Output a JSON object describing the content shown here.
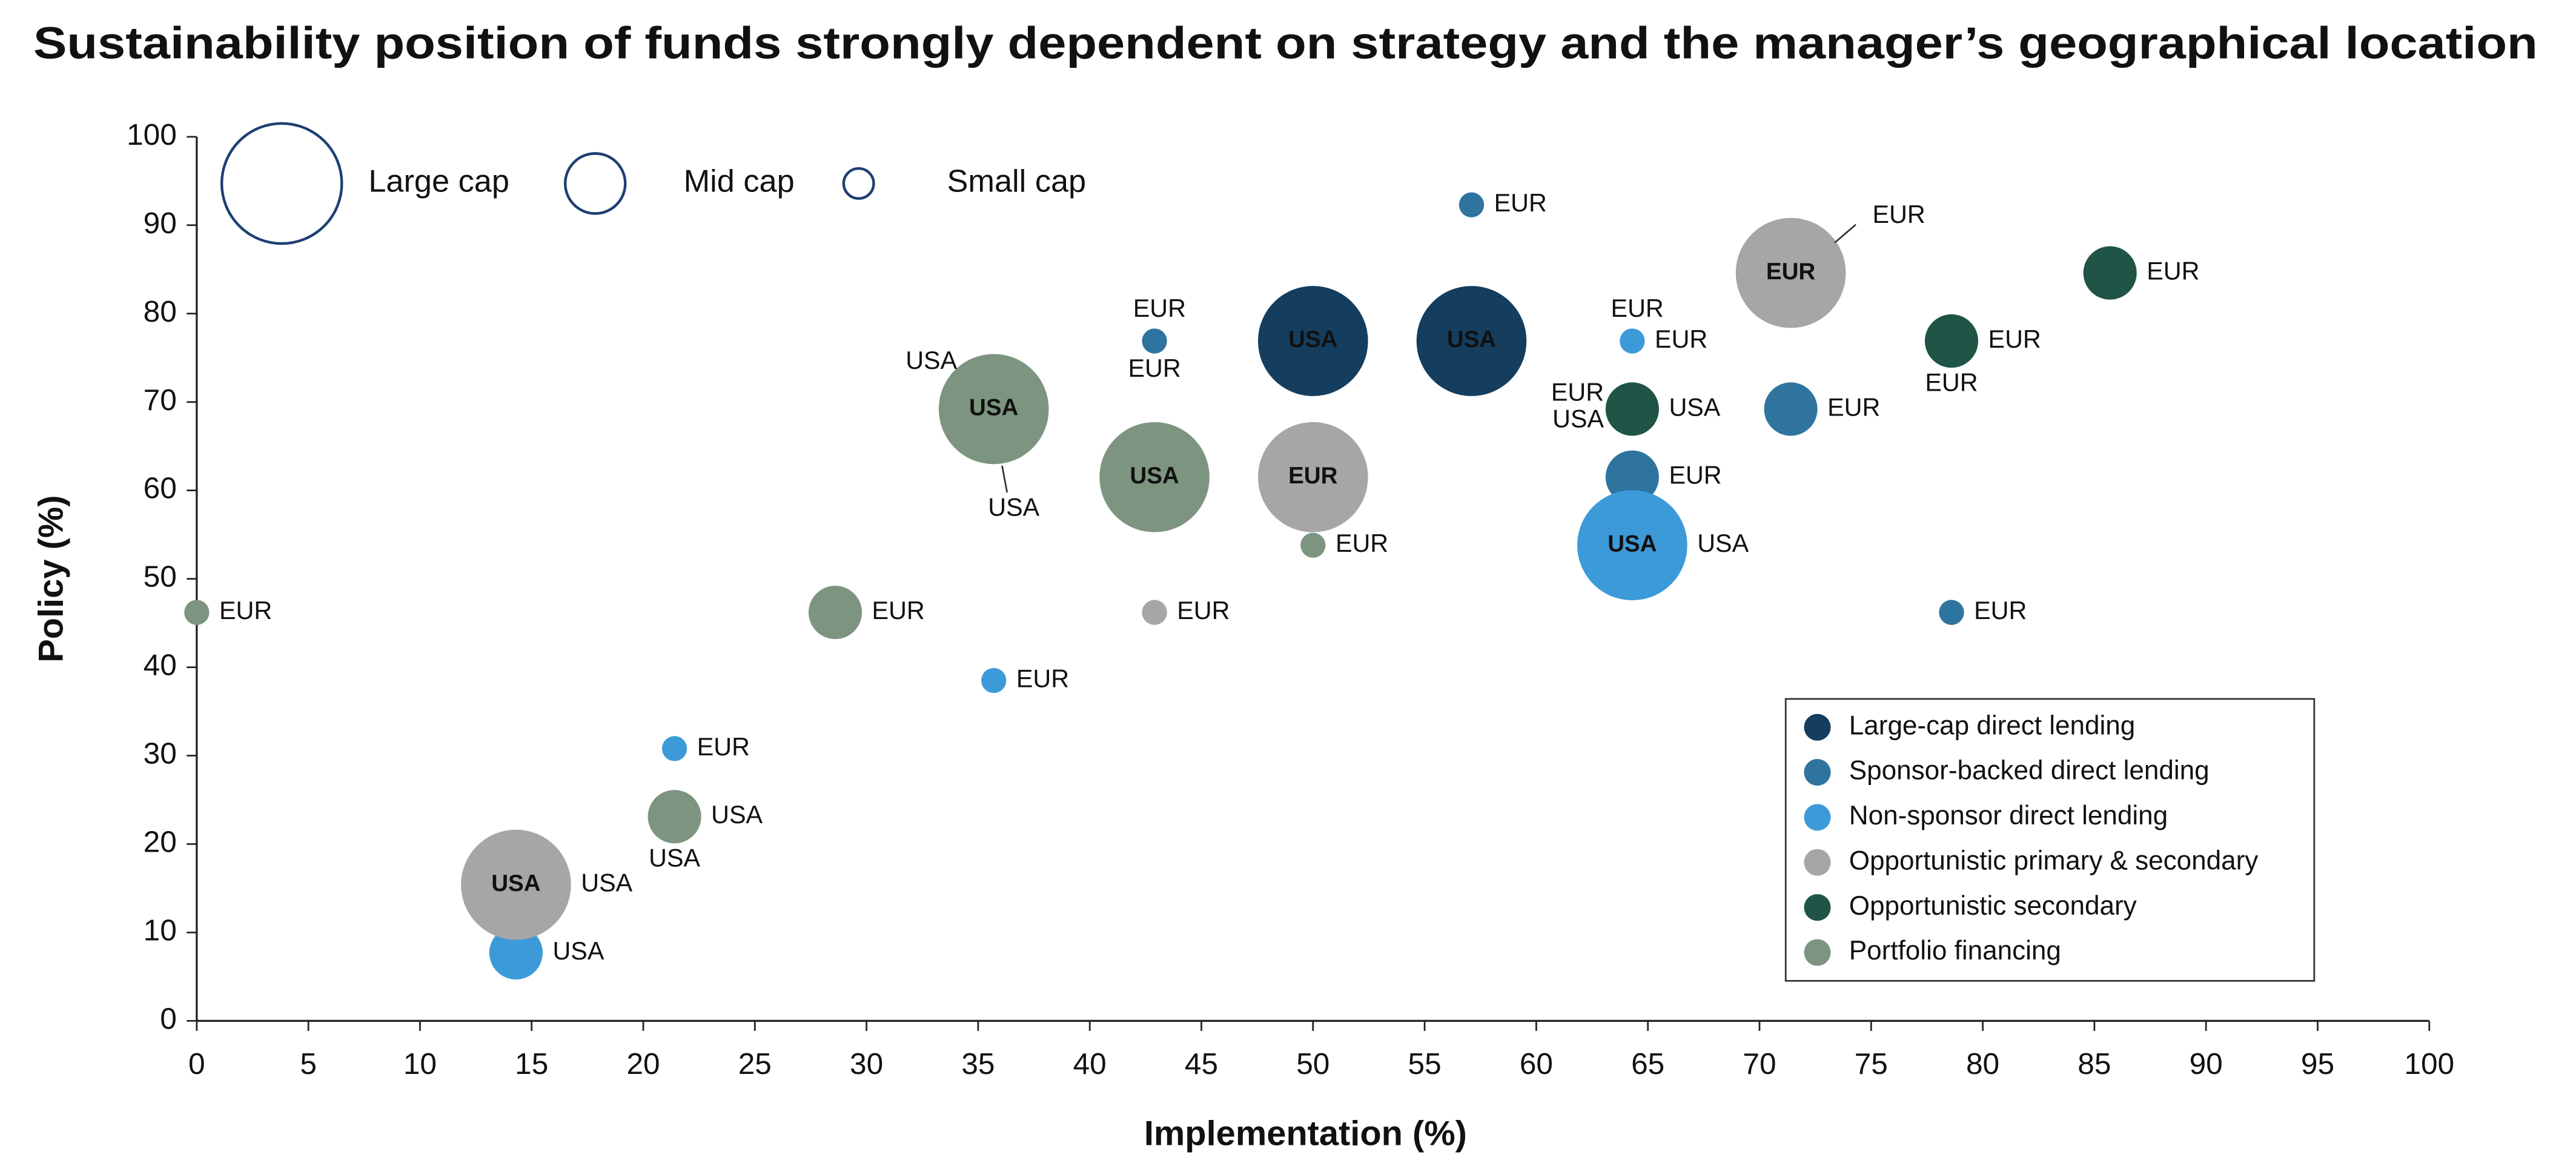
{
  "chart_data": {
    "type": "bubble",
    "title": "Sustainability position of funds strongly dependent on strategy and the manager’s geographical location",
    "x_label": "Implementation (%)",
    "y_label": "Policy (%)",
    "xlim": [
      0,
      100
    ],
    "ylim": [
      0,
      100
    ],
    "xticks": [
      0,
      5,
      10,
      15,
      20,
      25,
      30,
      35,
      40,
      45,
      50,
      55,
      60,
      65,
      70,
      75,
      80,
      85,
      90,
      95,
      100
    ],
    "yticks": [
      0,
      10,
      20,
      30,
      40,
      50,
      60,
      70,
      80,
      90,
      100
    ],
    "grid": false,
    "legend": "lower right",
    "size_legend": [
      "Large cap",
      "Mid cap",
      "Small cap"
    ],
    "series": [
      {
        "name": "Large-cap direct lending",
        "color": "#143d5e",
        "inside_text_color": "#ffffff",
        "points": [
          {
            "x": 50,
            "y": 76.9,
            "size": "Large cap",
            "labels": [
              {
                "text": "USA",
                "pos": "inside"
              }
            ]
          },
          {
            "x": 57.1,
            "y": 76.9,
            "size": "Large cap",
            "labels": [
              {
                "text": "USA",
                "pos": "inside"
              }
            ]
          }
        ]
      },
      {
        "name": "Sponsor-backed direct lending",
        "color": "#2f749e",
        "inside_text_color": "#ffffff",
        "points": [
          {
            "x": 57.1,
            "y": 92.3,
            "size": "Small cap",
            "labels": [
              {
                "text": "EUR",
                "pos": "right"
              }
            ]
          },
          {
            "x": 42.9,
            "y": 76.9,
            "size": "Small cap",
            "labels": [
              {
                "text": "EUR",
                "pos": "above"
              },
              {
                "text": "EUR",
                "pos": "below"
              }
            ]
          },
          {
            "x": 71.4,
            "y": 69.2,
            "size": "Mid cap",
            "labels": [
              {
                "text": "EUR",
                "pos": "right"
              }
            ]
          },
          {
            "x": 64.3,
            "y": 61.5,
            "size": "Mid cap",
            "labels": [
              {
                "text": "EUR",
                "pos": "right"
              }
            ]
          },
          {
            "x": 78.6,
            "y": 46.2,
            "size": "Small cap",
            "labels": [
              {
                "text": "EUR",
                "pos": "right"
              }
            ]
          }
        ]
      },
      {
        "name": "Non-sponsor direct lending",
        "color": "#3d9ad9",
        "inside_text_color": "#0b1f30",
        "points": [
          {
            "x": 64.3,
            "y": 76.9,
            "size": "Small cap",
            "labels": [
              {
                "text": "EUR",
                "pos": "above"
              },
              {
                "text": "EUR",
                "pos": "right"
              }
            ]
          },
          {
            "x": 64.3,
            "y": 53.8,
            "size": "Large cap",
            "labels": [
              {
                "text": "USA",
                "pos": "inside"
              },
              {
                "text": "USA",
                "pos": "right"
              }
            ]
          },
          {
            "x": 35.7,
            "y": 38.5,
            "size": "Small cap",
            "labels": [
              {
                "text": "EUR",
                "pos": "right"
              }
            ]
          },
          {
            "x": 21.4,
            "y": 30.8,
            "size": "Small cap",
            "labels": [
              {
                "text": "EUR",
                "pos": "right"
              }
            ]
          },
          {
            "x": 14.3,
            "y": 7.7,
            "size": "Mid cap",
            "labels": [
              {
                "text": "USA",
                "pos": "right"
              }
            ]
          }
        ]
      },
      {
        "name": "Opportunistic primary & secondary",
        "color": "#a6a6a6",
        "inside_text_color": "#ffffff",
        "points": [
          {
            "x": 71.4,
            "y": 84.6,
            "size": "Large cap",
            "labels": [
              {
                "text": "EUR",
                "pos": "inside"
              },
              {
                "text": "EUR",
                "pos": "upper-right"
              }
            ]
          },
          {
            "x": 50,
            "y": 61.5,
            "size": "Large cap",
            "labels": [
              {
                "text": "EUR",
                "pos": "inside"
              }
            ]
          },
          {
            "x": 42.9,
            "y": 46.2,
            "size": "Small cap",
            "labels": [
              {
                "text": "EUR",
                "pos": "right"
              }
            ]
          },
          {
            "x": 14.3,
            "y": 15.4,
            "size": "Large cap",
            "labels": [
              {
                "text": "USA",
                "pos": "inside"
              },
              {
                "text": "USA",
                "pos": "right"
              }
            ]
          }
        ]
      },
      {
        "name": "Opportunistic secondary",
        "color": "#1f5446",
        "inside_text_color": "#ffffff",
        "points": [
          {
            "x": 85.7,
            "y": 84.6,
            "size": "Mid cap",
            "labels": [
              {
                "text": "EUR",
                "pos": "right"
              }
            ]
          },
          {
            "x": 78.6,
            "y": 76.9,
            "size": "Mid cap",
            "labels": [
              {
                "text": "EUR",
                "pos": "right"
              },
              {
                "text": "EUR",
                "pos": "below"
              }
            ]
          },
          {
            "x": 64.3,
            "y": 69.2,
            "size": "Mid cap",
            "labels": [
              {
                "text": "USA",
                "pos": "right"
              },
              {
                "text": "EUR",
                "pos": "upper-left"
              },
              {
                "text": "USA",
                "pos": "lower-left"
              }
            ]
          }
        ]
      },
      {
        "name": "Portfolio financing",
        "color": "#7d9580",
        "inside_text_color": "#111111",
        "points": [
          {
            "x": 35.7,
            "y": 69.2,
            "size": "Large cap",
            "labels": [
              {
                "text": "USA",
                "pos": "inside"
              },
              {
                "text": "USA",
                "pos": "upper-left"
              },
              {
                "text": "USA",
                "pos": "below"
              }
            ]
          },
          {
            "x": 42.9,
            "y": 61.5,
            "size": "Large cap",
            "labels": [
              {
                "text": "USA",
                "pos": "inside"
              }
            ]
          },
          {
            "x": 28.6,
            "y": 46.2,
            "size": "Mid cap",
            "labels": [
              {
                "text": "EUR",
                "pos": "right"
              }
            ]
          },
          {
            "x": 50,
            "y": 53.8,
            "size": "Small cap",
            "labels": [
              {
                "text": "EUR",
                "pos": "right"
              }
            ]
          },
          {
            "x": 0,
            "y": 46.2,
            "size": "Small cap",
            "labels": [
              {
                "text": "EUR",
                "pos": "right"
              }
            ]
          },
          {
            "x": 21.4,
            "y": 23.1,
            "size": "Mid cap",
            "labels": [
              {
                "text": "USA",
                "pos": "right"
              },
              {
                "text": "USA",
                "pos": "below"
              }
            ]
          }
        ]
      }
    ]
  }
}
